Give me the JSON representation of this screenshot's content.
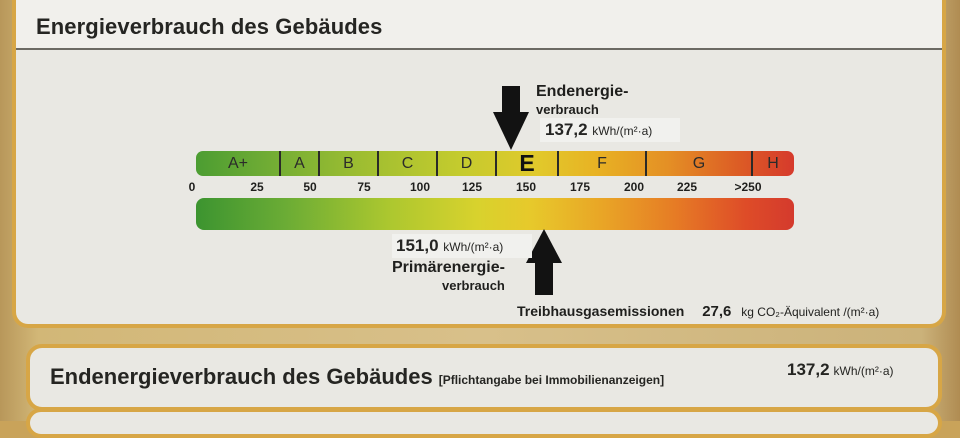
{
  "header": {
    "title": "Energieverbrauch des Gebäudes"
  },
  "endenergie": {
    "label_line1": "Endenergie-",
    "label_line2": "verbrauch",
    "value": "137,2",
    "unit": "kWh/(m²·a)"
  },
  "scale": {
    "classes": [
      {
        "label": "A+",
        "active": false
      },
      {
        "label": "A",
        "active": false
      },
      {
        "label": "B",
        "active": false
      },
      {
        "label": "C",
        "active": false
      },
      {
        "label": "D",
        "active": false
      },
      {
        "label": "E",
        "active": true
      },
      {
        "label": "F",
        "active": false
      },
      {
        "label": "G",
        "active": false
      },
      {
        "label": "H",
        "active": false
      }
    ],
    "ticks": [
      "0",
      "25",
      "50",
      "75",
      "100",
      "125",
      "150",
      "175",
      "200",
      "225",
      ">250"
    ],
    "colors": {
      "green": "#4c9d32",
      "yellow": "#e1c92b",
      "orange": "#e48f25",
      "red": "#d63a2c"
    }
  },
  "primaerenergie": {
    "value": "151,0",
    "unit": "kWh/(m²·a)",
    "label_line1": "Primärenergie-",
    "label_line2": "verbrauch"
  },
  "emissions": {
    "label": "Treibhausgasemissionen",
    "value": "27,6",
    "unit": "kg CO₂-Äquivalent /(m²·a)"
  },
  "summary": {
    "title": "Endenergieverbrauch des Gebäudes",
    "note": "[Pflichtangabe bei Immobilienanzeigen]",
    "value": "137,2",
    "unit": "kWh/(m²·a)"
  },
  "icons": {
    "end_arrow": "arrow-down-icon",
    "prim_arrow": "arrow-up-icon"
  }
}
